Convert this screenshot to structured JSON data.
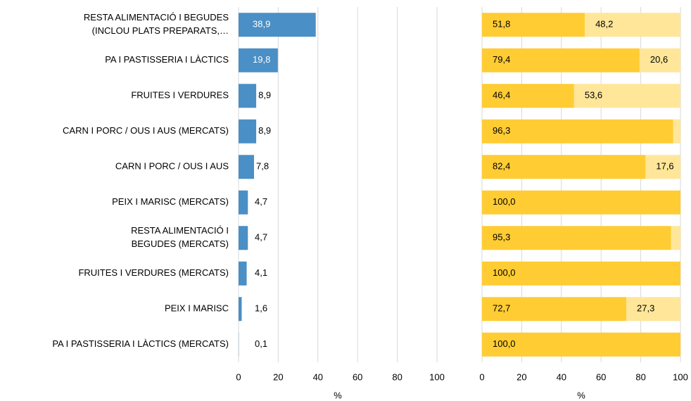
{
  "chart_data": [
    {
      "type": "bar",
      "orientation": "horizontal",
      "categories": [
        "RESTA ALIMENTACIÓ I BEGUDES\n(INCLOU PLATS PREPARATS,…",
        "PA I PASTISSERIA I LÀCTICS",
        "FRUITES I VERDURES",
        "CARN I PORC / OUS I AUS (MERCATS)",
        "CARN I PORC / OUS I AUS",
        "PEIX I MARISC (MERCATS)",
        "RESTA ALIMENTACIÓ I\nBEGUDES (MERCATS)",
        "FRUITES I VERDURES (MERCATS)",
        "PEIX I MARISC",
        "PA I PASTISSERIA I LÀCTICS (MERCATS)"
      ],
      "values": [
        38.9,
        19.8,
        8.9,
        8.9,
        7.8,
        4.7,
        4.7,
        4.1,
        1.6,
        0.1
      ],
      "value_labels": [
        "38,9",
        "19,8",
        "8,9",
        "8,9",
        "7,8",
        "4,7",
        "4,7",
        "4,1",
        "1,6",
        "0,1"
      ],
      "color": "#4a8fc5",
      "xlim": [
        0,
        100
      ],
      "xticks": [
        0,
        20,
        40,
        60,
        80,
        100
      ],
      "x_label": "%",
      "grid": true
    },
    {
      "type": "stacked_bar",
      "orientation": "horizontal",
      "series": [
        {
          "color": "#ffcc33",
          "values": [
            51.8,
            79.4,
            46.4,
            96.3,
            82.4,
            100,
            95.3,
            100,
            72.7,
            100
          ],
          "value_labels": [
            "51,8",
            "79,4",
            "46,4",
            "96,3",
            "82,4",
            "100,0",
            "95,3",
            "100,0",
            "72,7",
            "100,0"
          ]
        },
        {
          "color": "#ffe699",
          "values": [
            48.2,
            20.6,
            53.6,
            3.7,
            17.6,
            0,
            4.7,
            0,
            27.3,
            0
          ],
          "value_labels": [
            "48,2",
            "20,6",
            "53,6",
            null,
            "17,6",
            null,
            null,
            null,
            "27,3",
            null
          ]
        }
      ],
      "xlim": [
        0,
        100
      ],
      "xticks": [
        0,
        20,
        40,
        60,
        80,
        100
      ],
      "x_label": "%",
      "grid": true
    }
  ]
}
